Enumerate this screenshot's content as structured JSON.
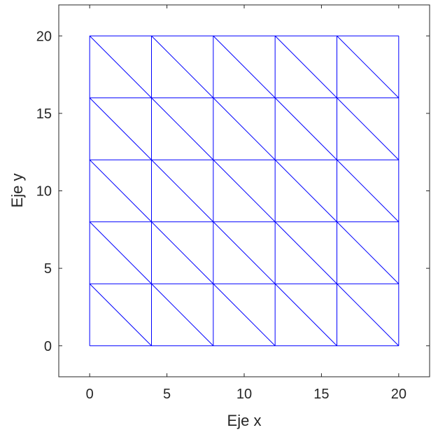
{
  "chart_data": {
    "type": "mesh",
    "xlabel": "Eje x",
    "ylabel": "Eje y",
    "xlim": [
      -2,
      22
    ],
    "ylim": [
      -2,
      22
    ],
    "x_ticks": [
      0,
      5,
      10,
      15,
      20
    ],
    "y_ticks": [
      0,
      5,
      10,
      15,
      20
    ],
    "grid": false,
    "mesh_color": "#0000ff",
    "mesh": {
      "x_nodes": [
        0,
        4,
        8,
        12,
        16,
        20
      ],
      "y_nodes": [
        0,
        4,
        8,
        12,
        16,
        20
      ],
      "diagonal": "top-left to bottom-right in each cell"
    }
  }
}
